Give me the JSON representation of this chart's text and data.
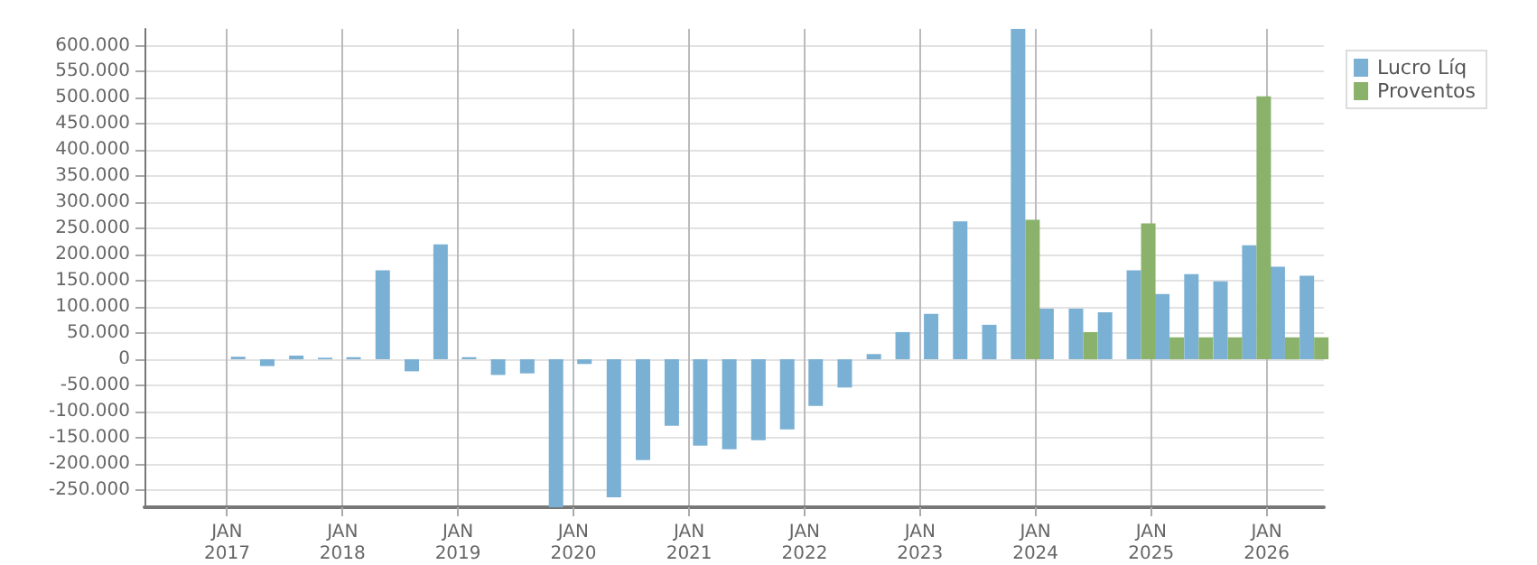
{
  "chart_data": {
    "type": "bar",
    "x": [
      "2017-02-28",
      "2017-05-31",
      "2017-08-31",
      "2017-11-30",
      "2018-02-28",
      "2018-05-31",
      "2018-08-31",
      "2018-11-30",
      "2019-02-28",
      "2019-05-31",
      "2019-08-31",
      "2019-11-30",
      "2020-02-28",
      "2020-05-31",
      "2020-08-31",
      "2020-11-30",
      "2021-02-28",
      "2021-05-31",
      "2021-08-31",
      "2021-11-30",
      "2022-02-28",
      "2022-05-31",
      "2022-08-31",
      "2022-11-30",
      "2023-02-28",
      "2023-05-31",
      "2023-08-31",
      "2023-11-30",
      "2024-02-28",
      "2024-05-31",
      "2024-08-31",
      "2024-11-30",
      "2025-02-28",
      "2025-05-31",
      "2025-08-31",
      "2025-11-30",
      "2026-02-28",
      "2026-05-31"
    ],
    "series": [
      {
        "name": "Lucro Líq",
        "color": "#7ab0d4",
        "values": [
          5000,
          -13000,
          7000,
          3000,
          4000,
          170000,
          -23000,
          220000,
          4000,
          -30000,
          -27000,
          -283000,
          -9000,
          -264000,
          -193000,
          -127000,
          -165000,
          -172000,
          -155000,
          -134000,
          -89000,
          -54000,
          10000,
          52000,
          87000,
          264000,
          66000,
          632000,
          97000,
          97000,
          90000,
          170000,
          125000,
          163000,
          149000,
          218000,
          177000,
          160000
        ]
      },
      {
        "name": "Proventos",
        "color": "#8ab26a",
        "values": [
          0,
          0,
          0,
          0,
          0,
          0,
          0,
          0,
          0,
          0,
          0,
          0,
          0,
          0,
          0,
          0,
          0,
          0,
          0,
          0,
          0,
          0,
          0,
          0,
          0,
          0,
          0,
          267000,
          0,
          52000,
          0,
          260000,
          42000,
          42000,
          42000,
          503000,
          42000,
          42000
        ]
      }
    ],
    "xlim": [
      "2016-04-15",
      "2026-07-01"
    ],
    "xticks": [
      {
        "value": "2017-01-01",
        "label": "JAN\n2017"
      },
      {
        "value": "2018-01-01",
        "label": "JAN\n2018"
      },
      {
        "value": "2019-01-01",
        "label": "JAN\n2019"
      },
      {
        "value": "2020-01-01",
        "label": "JAN\n2020"
      },
      {
        "value": "2021-01-01",
        "label": "JAN\n2021"
      },
      {
        "value": "2022-01-01",
        "label": "JAN\n2022"
      },
      {
        "value": "2023-01-01",
        "label": "JAN\n2023"
      },
      {
        "value": "2024-01-01",
        "label": "JAN\n2024"
      },
      {
        "value": "2025-01-01",
        "label": "JAN\n2025"
      },
      {
        "value": "2026-01-01",
        "label": "JAN\n2026"
      }
    ],
    "ylim": [
      -283000,
      632000
    ],
    "yticks": [
      {
        "value": -250000,
        "label": "-250.000"
      },
      {
        "value": -200000,
        "label": "-200.000"
      },
      {
        "value": -150000,
        "label": "-150.000"
      },
      {
        "value": -100000,
        "label": "-100.000"
      },
      {
        "value": -50000,
        "label": "-50.000"
      },
      {
        "value": 0,
        "label": "0"
      },
      {
        "value": 50000,
        "label": "50.000"
      },
      {
        "value": 100000,
        "label": "100.000"
      },
      {
        "value": 150000,
        "label": "150.000"
      },
      {
        "value": 200000,
        "label": "200.000"
      },
      {
        "value": 250000,
        "label": "250.000"
      },
      {
        "value": 300000,
        "label": "300.000"
      },
      {
        "value": 350000,
        "label": "350.000"
      },
      {
        "value": 400000,
        "label": "400.000"
      },
      {
        "value": 450000,
        "label": "450.000"
      },
      {
        "value": 500000,
        "label": "500.000"
      },
      {
        "value": 550000,
        "label": "550.000"
      },
      {
        "value": 600000,
        "label": "600.000"
      }
    ],
    "grid": true,
    "legend": "top right"
  }
}
